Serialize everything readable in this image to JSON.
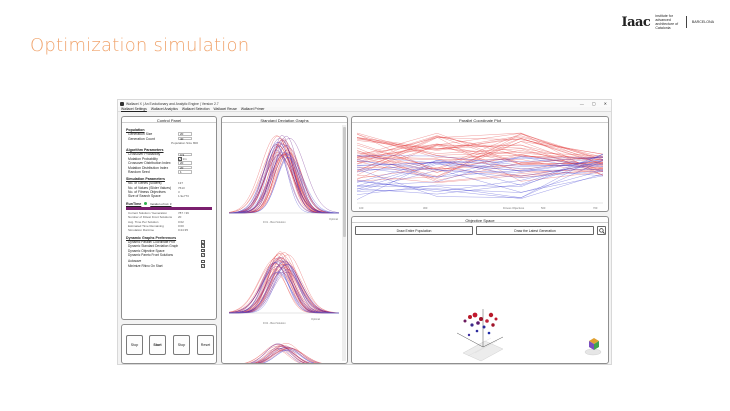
{
  "slide": {
    "title": "Optimization simulation",
    "brand": {
      "logo": "Iaac",
      "sub": "institute for advanced architecture of Catalonia",
      "city": "BARCELONA"
    }
  },
  "window": {
    "title": "Wallacei X  |  An Evolutionary and Analytic Engine  |  Version 2.7",
    "controls": {
      "minimize": "—",
      "maximize": "▢",
      "close": "✕"
    }
  },
  "menu": [
    "Wallacei Settings",
    "Wallacei Analytics",
    "Wallacei Selection",
    "Wallacei Reuse",
    "Wallacei Primer"
  ],
  "control_panel": {
    "title": "Control Panel",
    "population": {
      "title": "Population",
      "generation_size_label": "Generation Size",
      "generation_size": "20",
      "generation_count_label": "Generation Count",
      "generation_count": "40",
      "population_size_label": "Population Size",
      "population_size": "800"
    },
    "algorithm": {
      "title": "Algorithm Parameters",
      "crossover_label": "Crossover Probability",
      "crossover": "0.9",
      "mutation_label": "Mutation Probability",
      "mutation": "1/n",
      "crossover_index_label": "Crossover Distribution Index",
      "crossover_index": "20",
      "mutation_index_label": "Mutation Distribution Index",
      "mutation_index": "20",
      "seed_label": "Random Seed",
      "seed": "1"
    },
    "simulation": {
      "title": "Simulation Parameters",
      "genes_label": "No. of Genes (Sliders)",
      "genes": "137",
      "values_label": "No. of Values (Slider Values)",
      "values": "7613",
      "fitness_label": "No. of Fitness Objectives",
      "fitness": "3",
      "search_space_label": "Size of Search Space",
      "search_space": "1.9e773"
    },
    "runtime": {
      "title": "RunTime",
      "status": "Iteration of run: 3",
      "current_solution_label": "Current Solution / Generation",
      "current_solution": "787 / 39",
      "fittest_label": "Number of Fittest Front Solutions",
      "fittest": "20",
      "time_per_solution_label": "Avg. Time Per Solution",
      "time_per_solution": "0:02",
      "remaining_label": "Estimated Time Remaining",
      "remaining": "0:00",
      "duration_label": "Simulation Runtime",
      "duration": "0:24:35"
    },
    "dynamic": {
      "title": "Dynamic Graphs Preferences",
      "items": [
        {
          "label": "Dynamic Parallel Coordinate Plot",
          "checked": true
        },
        {
          "label": "Dynamic Standard Deviation Graph",
          "checked": true
        },
        {
          "label": "Dynamic Objective Space",
          "checked": true
        },
        {
          "label": "Dynamic Pareto Front Solutions",
          "checked": true
        }
      ],
      "autosave_label": "Autosave",
      "autosave": false,
      "minimize_label": "Minimize Rhino On Start",
      "minimize": true
    }
  },
  "buttons": {
    "stop": "Stop",
    "start": "Start",
    "stop2": "Stop",
    "reset": "Reset"
  },
  "std_dev": {
    "title": "Standard Deviation Graphs",
    "graph1_label": "FO1 - Best Solution",
    "graph1_side": "Optimal",
    "graph2_label": "FO2 - Best Solution",
    "graph2_side": "Optimal"
  },
  "pcp": {
    "title": "Parallel Coordinate Plot",
    "x_labels": [
      "100",
      "300",
      "500",
      "700"
    ],
    "axis_caption": "Fitness Objectives"
  },
  "objective_space": {
    "title": "Objective Space",
    "draw_entire": "Draw Entire Population",
    "draw_latest": "Draw the Latest Generation"
  },
  "colors": {
    "accent": "#f0a36b",
    "runtime": "#7a1f6e",
    "status": "#2db14c",
    "red_series": "#e23a3a",
    "blue_series": "#3b3bd1",
    "purple_series": "#6a1b8a"
  }
}
